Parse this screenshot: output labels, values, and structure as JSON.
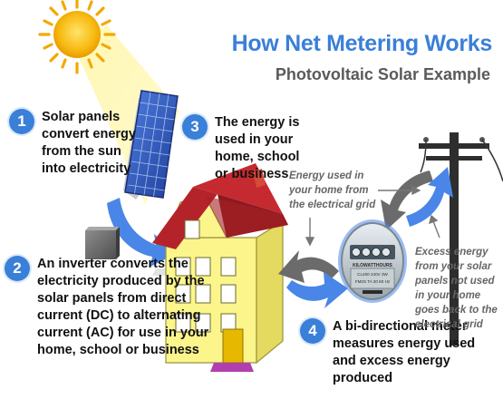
{
  "title": "How Net Metering Works",
  "subtitle": "Photovoltaic Solar Example",
  "steps": [
    {
      "number": "1",
      "text": "Solar panels\nconvert energy\nfrom the sun\ninto electricity"
    },
    {
      "number": "2",
      "text": "An inverter converts the\nelectricity produced by the\nsolar panels from direct\ncurrent (DC) to alternating\ncurrent (AC) for use in your\nhome, school or business"
    },
    {
      "number": "3",
      "text": "The energy is\nused in your\nhome, school\nor business"
    },
    {
      "number": "4",
      "text": "A bi-directional meter\nmeasures energy used\nand excess energy\nproduced"
    }
  ],
  "notes": {
    "grid_in": "Energy used in\nyour home from\nthe electrical grid",
    "excess_out": "Excess energy\nfrom your solar\npanels not used\nin your home\ngoes back to the\nelectrical grid"
  },
  "meter": {
    "label": "KILOWATTHOURS",
    "specs_line1": "CL200  240V  3W",
    "specs_line2": "FM2S  TA 30  60 Hz"
  },
  "colors": {
    "accent": "#3a7fd8",
    "arrow_blue": "#4a86e8",
    "arrow_gray": "#6b6b6b",
    "house_wall": "#fbf58c",
    "roof": "#b5232a",
    "sun": "#f7b90f",
    "panel": "#2a4fb0"
  }
}
